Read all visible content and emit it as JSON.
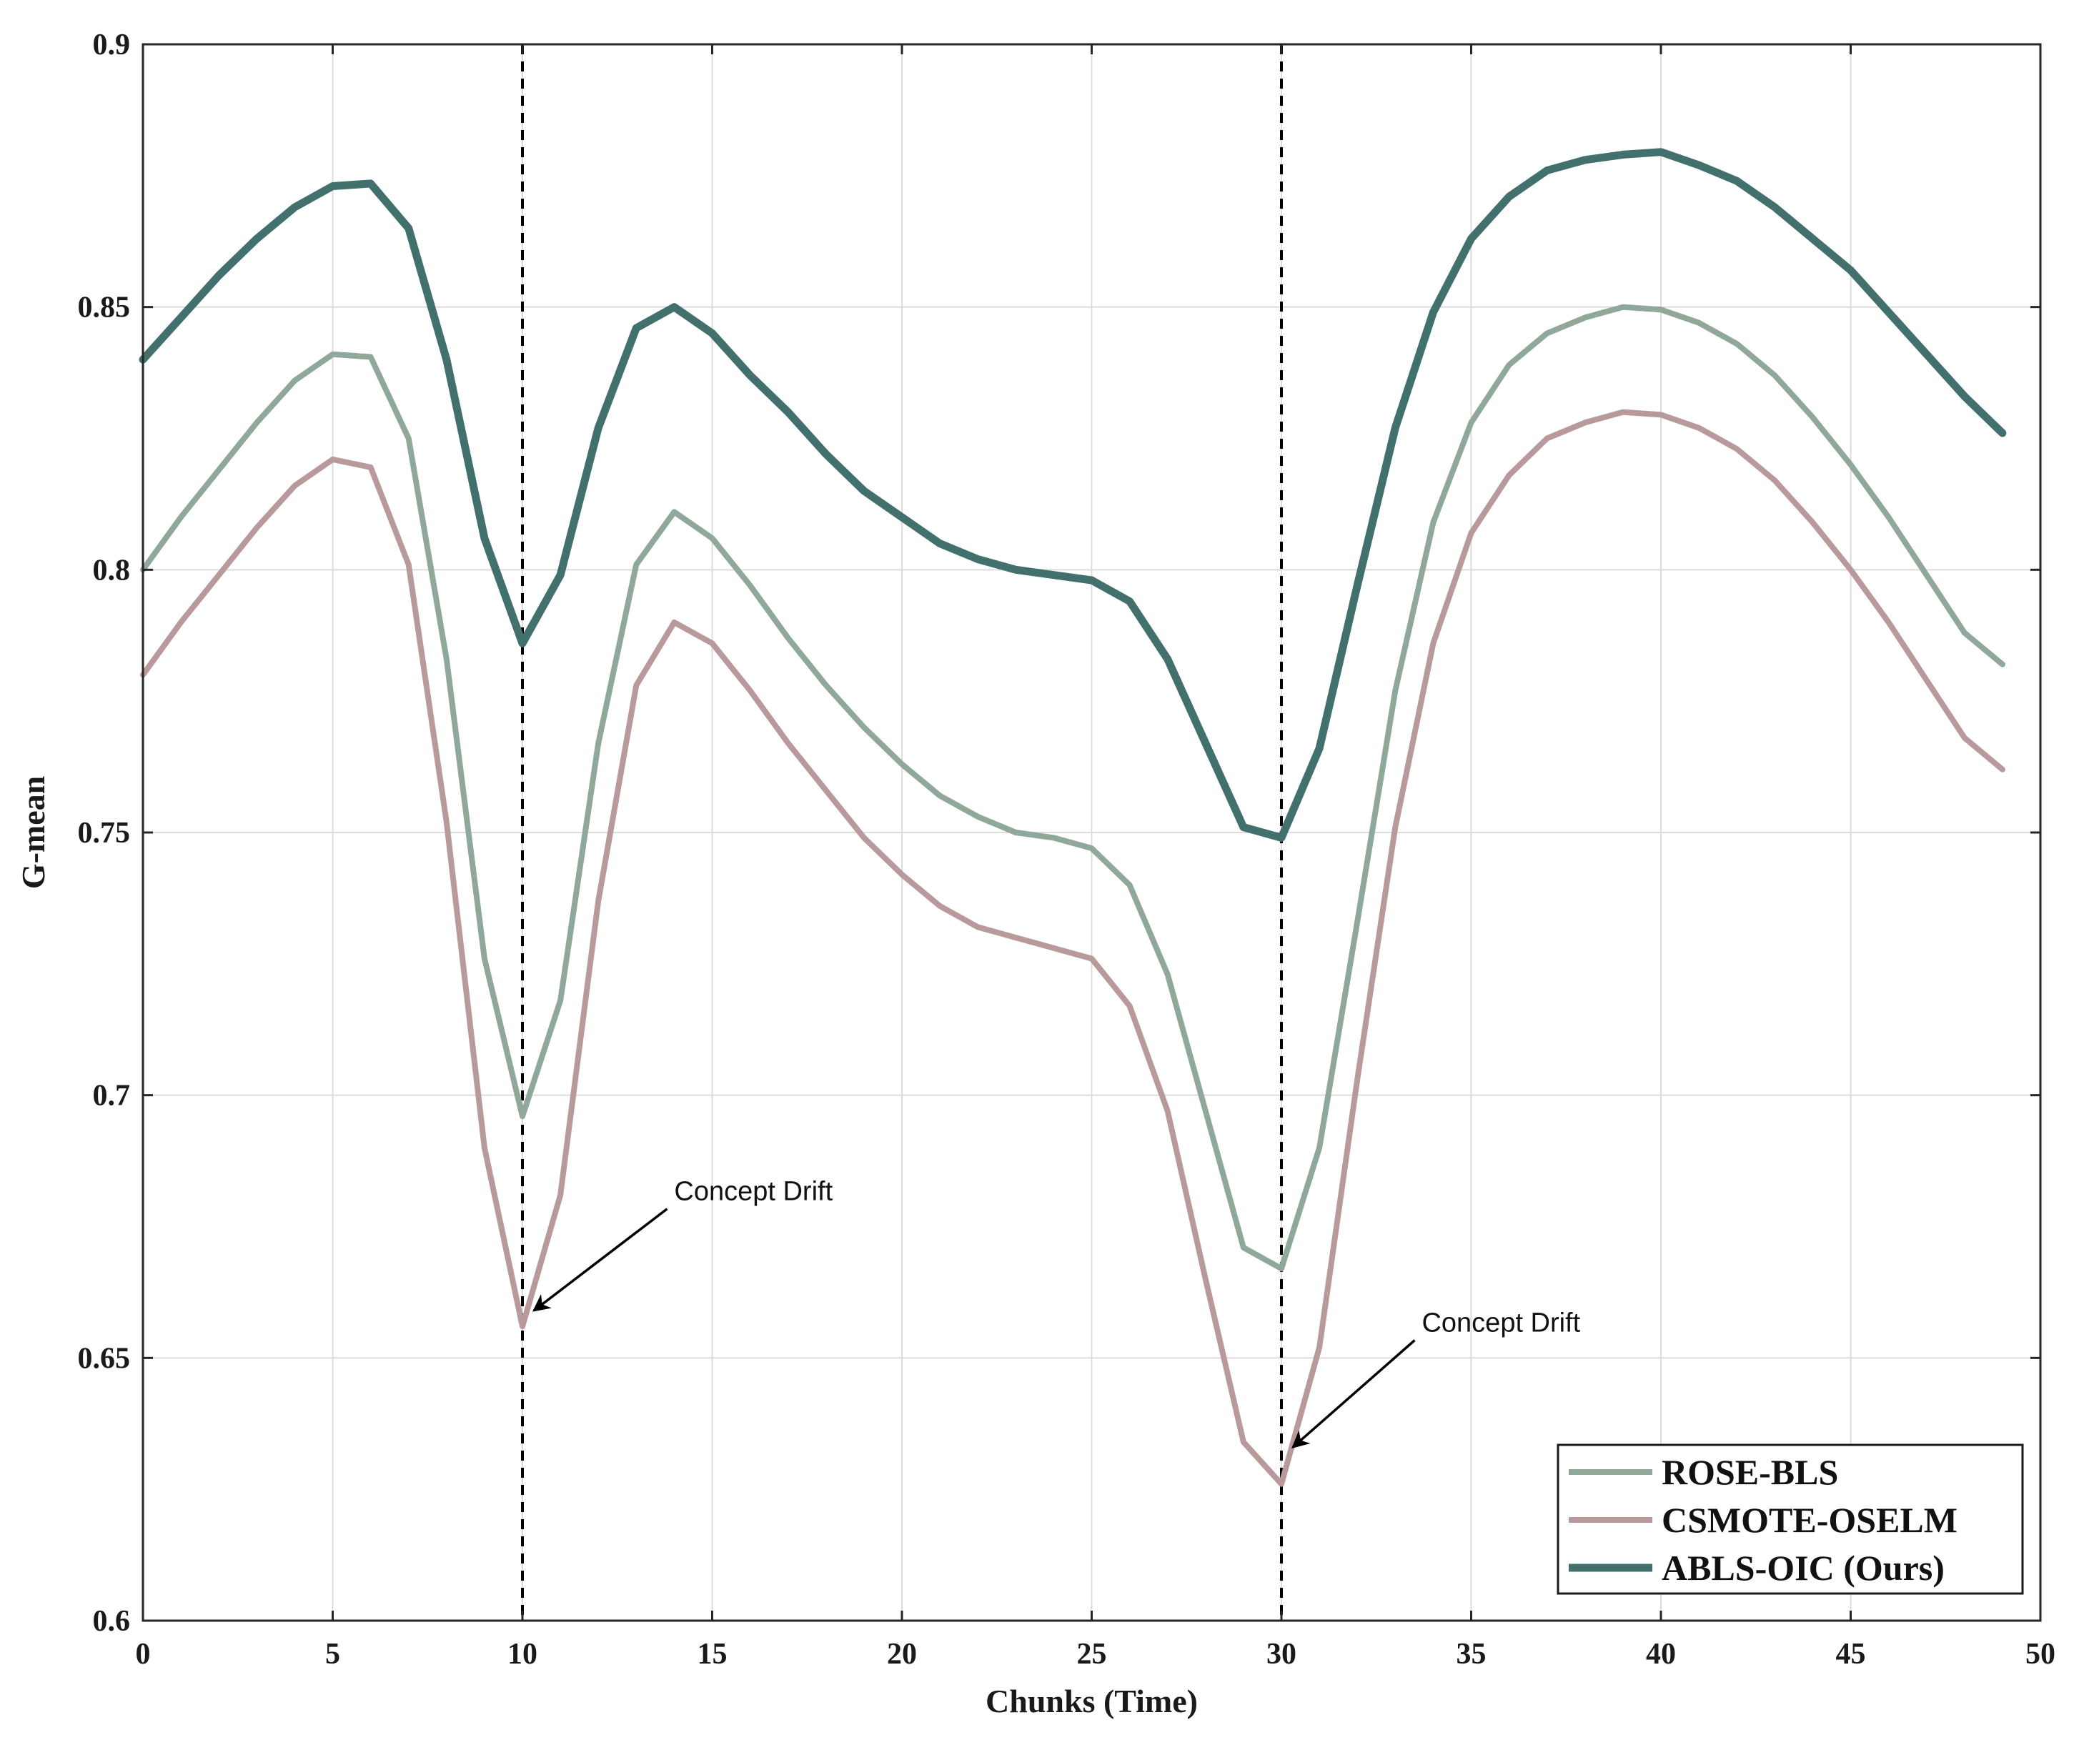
{
  "chart_data": {
    "type": "line",
    "xlabel": "Chunks (Time)",
    "ylabel": "G-mean",
    "xlim": [
      0,
      50
    ],
    "ylim": [
      0.6,
      0.9
    ],
    "xticks": [
      0,
      5,
      10,
      15,
      20,
      25,
      30,
      35,
      40,
      45,
      50
    ],
    "xtick_labels": [
      "0",
      "5",
      "10",
      "15",
      "20",
      "25",
      "30",
      "35",
      "40",
      "45",
      "50"
    ],
    "yticks": [
      0.6,
      0.65,
      0.7,
      0.75,
      0.8,
      0.85,
      0.9
    ],
    "ytick_labels": [
      "0.6",
      "0.65",
      "0.7",
      "0.75",
      "0.8",
      "0.85",
      "0.9"
    ],
    "grid": true,
    "legend_position": "bottom-right",
    "x": [
      0,
      1,
      2,
      3,
      4,
      5,
      6,
      7,
      8,
      9,
      10,
      11,
      12,
      13,
      14,
      15,
      16,
      17,
      18,
      19,
      20,
      21,
      22,
      23,
      24,
      25,
      26,
      27,
      28,
      29,
      30,
      31,
      32,
      33,
      34,
      35,
      36,
      37,
      38,
      39,
      40,
      41,
      42,
      43,
      44,
      45,
      46,
      47,
      48,
      49
    ],
    "series": [
      {
        "name": "ROSE-BLS",
        "color": "#8fa89a",
        "values": [
          0.8,
          0.81,
          0.819,
          0.828,
          0.836,
          0.841,
          0.8405,
          0.825,
          0.783,
          0.726,
          0.696,
          0.718,
          0.767,
          0.801,
          0.811,
          0.806,
          0.797,
          0.787,
          0.778,
          0.77,
          0.763,
          0.757,
          0.753,
          0.75,
          0.749,
          0.747,
          0.74,
          0.723,
          0.697,
          0.671,
          0.667,
          0.69,
          0.733,
          0.777,
          0.809,
          0.828,
          0.839,
          0.845,
          0.848,
          0.85,
          0.8495,
          0.847,
          0.843,
          0.837,
          0.829,
          0.82,
          0.81,
          0.799,
          0.788,
          0.782
        ]
      },
      {
        "name": "CSMOTE-OSELM",
        "color": "#b99a9c",
        "values": [
          0.78,
          0.79,
          0.799,
          0.808,
          0.816,
          0.821,
          0.8195,
          0.801,
          0.752,
          0.69,
          0.656,
          0.681,
          0.737,
          0.778,
          0.79,
          0.786,
          0.777,
          0.767,
          0.758,
          0.749,
          0.742,
          0.736,
          0.732,
          0.73,
          0.728,
          0.726,
          0.717,
          0.697,
          0.665,
          0.634,
          0.626,
          0.652,
          0.703,
          0.751,
          0.786,
          0.807,
          0.818,
          0.825,
          0.828,
          0.83,
          0.8295,
          0.827,
          0.823,
          0.817,
          0.809,
          0.8,
          0.79,
          0.779,
          0.768,
          0.762
        ]
      },
      {
        "name": "ABLS-OIC (Ours)",
        "color": "#42706c",
        "values": [
          0.84,
          0.848,
          0.856,
          0.863,
          0.869,
          0.873,
          0.8735,
          0.865,
          0.84,
          0.806,
          0.786,
          0.799,
          0.827,
          0.846,
          0.85,
          0.845,
          0.837,
          0.83,
          0.822,
          0.815,
          0.81,
          0.805,
          0.802,
          0.8,
          0.799,
          0.798,
          0.794,
          0.783,
          0.767,
          0.751,
          0.749,
          0.766,
          0.797,
          0.827,
          0.849,
          0.863,
          0.871,
          0.876,
          0.878,
          0.879,
          0.8795,
          0.877,
          0.874,
          0.869,
          0.863,
          0.857,
          0.849,
          0.841,
          0.833,
          0.826
        ]
      }
    ],
    "vlines": [
      10,
      30
    ],
    "annotations": [
      {
        "text": "Concept Drift",
        "target_x": 10.3,
        "target_y": 0.659,
        "text_x": 14,
        "text_y": 0.68
      },
      {
        "text": "Concept Drift",
        "target_x": 30.3,
        "target_y": 0.633,
        "text_x": 33.7,
        "text_y": 0.655
      }
    ]
  }
}
